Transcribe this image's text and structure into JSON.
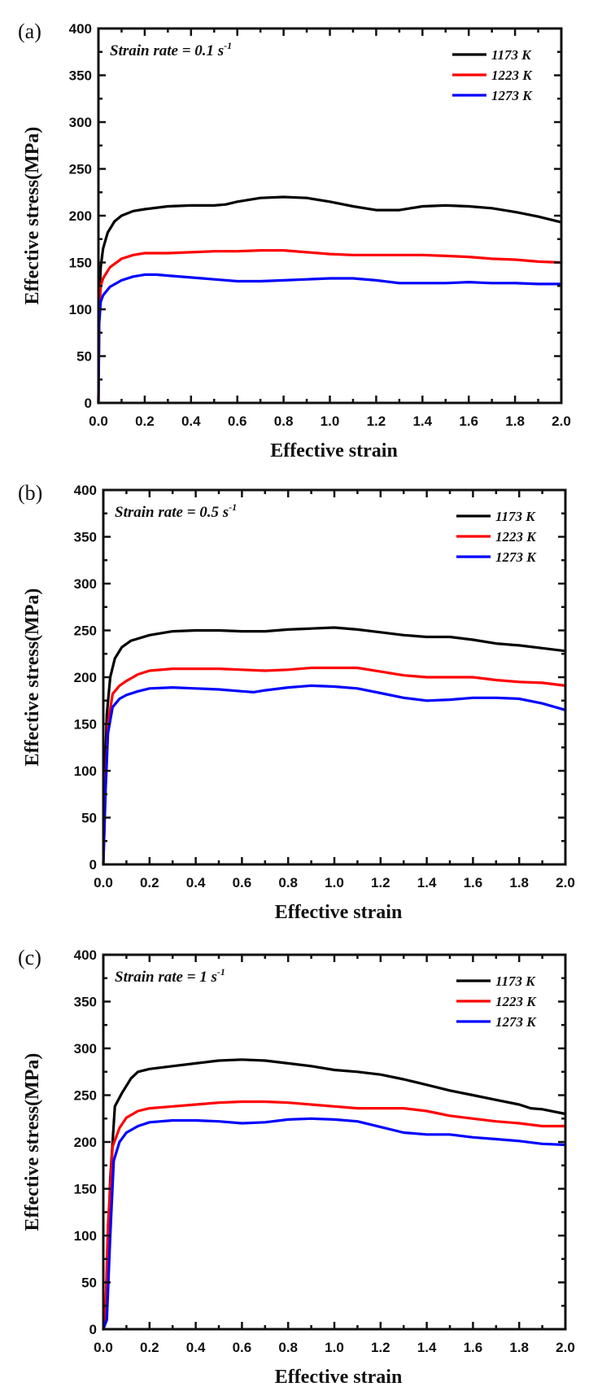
{
  "chart_data": [
    {
      "type": "line",
      "panel_label": "(a)",
      "annotation": {
        "text": "Strain rate = 0.1 s",
        "superscript": "-1"
      },
      "xlabel": "Effective strain",
      "ylabel": "Effective stress(MPa)",
      "xlim": [
        0,
        2.0
      ],
      "ylim": [
        0,
        400
      ],
      "xticks": [
        "0.0",
        "0.2",
        "0.4",
        "0.6",
        "0.8",
        "1.0",
        "1.2",
        "1.4",
        "1.6",
        "1.8",
        "2.0"
      ],
      "yticks": [
        "0",
        "50",
        "100",
        "150",
        "200",
        "250",
        "300",
        "350",
        "400"
      ],
      "legend_position": "top-right",
      "series": [
        {
          "name": "1173 K",
          "color": "#000000",
          "x": [
            0,
            0.003,
            0.01,
            0.02,
            0.04,
            0.07,
            0.1,
            0.15,
            0.2,
            0.3,
            0.4,
            0.5,
            0.55,
            0.6,
            0.7,
            0.8,
            0.9,
            1.0,
            1.1,
            1.2,
            1.3,
            1.4,
            1.5,
            1.6,
            1.7,
            1.8,
            1.9,
            2.0
          ],
          "y": [
            0,
            110,
            145,
            165,
            182,
            194,
            200,
            205,
            207,
            210,
            211,
            211,
            212,
            215,
            219,
            220,
            219,
            215,
            210,
            206,
            206,
            210,
            211,
            210,
            208,
            204,
            199,
            193
          ]
        },
        {
          "name": "1223 K",
          "color": "#ff0000",
          "x": [
            0,
            0.003,
            0.01,
            0.02,
            0.05,
            0.1,
            0.15,
            0.2,
            0.3,
            0.4,
            0.5,
            0.6,
            0.7,
            0.8,
            0.9,
            1.0,
            1.1,
            1.2,
            1.3,
            1.4,
            1.5,
            1.6,
            1.7,
            1.8,
            1.9,
            2.0
          ],
          "y": [
            0,
            95,
            125,
            133,
            145,
            154,
            158,
            160,
            160,
            161,
            162,
            162,
            163,
            163,
            161,
            159,
            158,
            158,
            158,
            158,
            157,
            156,
            154,
            153,
            151,
            150
          ]
        },
        {
          "name": "1273 K",
          "color": "#0000ff",
          "x": [
            0,
            0.003,
            0.01,
            0.02,
            0.05,
            0.1,
            0.15,
            0.2,
            0.25,
            0.3,
            0.4,
            0.5,
            0.6,
            0.7,
            0.8,
            0.9,
            1.0,
            1.1,
            1.2,
            1.3,
            1.4,
            1.5,
            1.6,
            1.7,
            1.8,
            1.9,
            2.0
          ],
          "y": [
            0,
            85,
            108,
            115,
            124,
            131,
            135,
            137,
            137,
            136,
            134,
            132,
            130,
            130,
            131,
            132,
            133,
            133,
            131,
            128,
            128,
            128,
            129,
            128,
            128,
            127,
            127
          ]
        }
      ]
    },
    {
      "type": "line",
      "panel_label": "(b)",
      "annotation": {
        "text": "Strain rate = 0.5 s",
        "superscript": "-1"
      },
      "xlabel": "Effective strain",
      "ylabel": "Effective stress(MPa)",
      "xlim": [
        0,
        2.0
      ],
      "ylim": [
        0,
        400
      ],
      "xticks": [
        "0.0",
        "0.2",
        "0.4",
        "0.6",
        "0.8",
        "1.0",
        "1.2",
        "1.4",
        "1.6",
        "1.8",
        "2.0"
      ],
      "yticks": [
        "0",
        "50",
        "100",
        "150",
        "200",
        "250",
        "300",
        "350",
        "400"
      ],
      "legend_position": "top-right",
      "series": [
        {
          "name": "1173 K",
          "color": "#000000",
          "x": [
            0,
            0.008,
            0.015,
            0.03,
            0.05,
            0.08,
            0.12,
            0.2,
            0.3,
            0.4,
            0.5,
            0.6,
            0.7,
            0.8,
            0.9,
            1.0,
            1.1,
            1.2,
            1.3,
            1.4,
            1.5,
            1.6,
            1.7,
            1.8,
            1.9,
            2.0
          ],
          "y": [
            0,
            100,
            160,
            200,
            220,
            232,
            239,
            245,
            249,
            250,
            250,
            249,
            249,
            251,
            252,
            253,
            251,
            248,
            245,
            243,
            243,
            240,
            236,
            234,
            231,
            228
          ]
        },
        {
          "name": "1223 K",
          "color": "#ff0000",
          "x": [
            0,
            0.01,
            0.02,
            0.04,
            0.07,
            0.1,
            0.15,
            0.2,
            0.3,
            0.4,
            0.5,
            0.6,
            0.7,
            0.8,
            0.9,
            1.0,
            1.1,
            1.2,
            1.3,
            1.4,
            1.5,
            1.6,
            1.7,
            1.8,
            1.9,
            2.0
          ],
          "y": [
            0,
            90,
            150,
            182,
            191,
            196,
            203,
            207,
            209,
            209,
            209,
            208,
            207,
            208,
            210,
            210,
            210,
            206,
            202,
            200,
            200,
            200,
            197,
            195,
            194,
            191
          ]
        },
        {
          "name": "1273 K",
          "color": "#0000ff",
          "x": [
            0,
            0.01,
            0.02,
            0.04,
            0.07,
            0.1,
            0.15,
            0.2,
            0.3,
            0.4,
            0.5,
            0.6,
            0.65,
            0.7,
            0.8,
            0.9,
            1.0,
            1.1,
            1.2,
            1.3,
            1.4,
            1.5,
            1.6,
            1.7,
            1.8,
            1.9,
            2.0
          ],
          "y": [
            0,
            80,
            140,
            168,
            177,
            181,
            185,
            188,
            189,
            188,
            187,
            185,
            184,
            186,
            189,
            191,
            190,
            188,
            183,
            178,
            175,
            176,
            178,
            178,
            177,
            172,
            165
          ]
        }
      ]
    },
    {
      "type": "line",
      "panel_label": "(c)",
      "annotation": {
        "text": "Strain rate = 1 s",
        "superscript": "-1"
      },
      "xlabel": "Effective strain",
      "ylabel": "Effective stress(MPa)",
      "xlim": [
        0,
        2.0
      ],
      "ylim": [
        0,
        400
      ],
      "xticks": [
        "0.0",
        "0.2",
        "0.4",
        "0.6",
        "0.8",
        "1.0",
        "1.2",
        "1.4",
        "1.6",
        "1.8",
        "2.0"
      ],
      "yticks": [
        "0",
        "50",
        "100",
        "150",
        "200",
        "250",
        "300",
        "350",
        "400"
      ],
      "legend_position": "top-right",
      "series": [
        {
          "name": "1173 K",
          "color": "#000000",
          "x": [
            0,
            0.01,
            0.03,
            0.05,
            0.08,
            0.12,
            0.15,
            0.2,
            0.3,
            0.4,
            0.5,
            0.6,
            0.7,
            0.8,
            0.9,
            1.0,
            1.1,
            1.2,
            1.3,
            1.4,
            1.5,
            1.6,
            1.7,
            1.8,
            1.85,
            1.9,
            2.0
          ],
          "y": [
            0,
            10,
            160,
            238,
            252,
            268,
            275,
            278,
            281,
            284,
            287,
            288,
            287,
            284,
            281,
            277,
            275,
            272,
            267,
            261,
            255,
            250,
            245,
            240,
            236,
            235,
            230
          ]
        },
        {
          "name": "1223 K",
          "color": "#ff0000",
          "x": [
            0,
            0.01,
            0.02,
            0.04,
            0.07,
            0.1,
            0.15,
            0.2,
            0.3,
            0.4,
            0.5,
            0.6,
            0.7,
            0.8,
            0.9,
            1.0,
            1.1,
            1.2,
            1.3,
            1.4,
            1.5,
            1.6,
            1.7,
            1.8,
            1.9,
            2.0
          ],
          "y": [
            0,
            20,
            110,
            195,
            215,
            226,
            233,
            236,
            238,
            240,
            242,
            243,
            243,
            242,
            240,
            238,
            236,
            236,
            236,
            233,
            228,
            225,
            222,
            220,
            217,
            217
          ]
        },
        {
          "name": "1273 K",
          "color": "#0000ff",
          "x": [
            0,
            0.015,
            0.03,
            0.045,
            0.07,
            0.1,
            0.15,
            0.2,
            0.3,
            0.4,
            0.5,
            0.6,
            0.7,
            0.8,
            0.9,
            1.0,
            1.1,
            1.2,
            1.3,
            1.4,
            1.5,
            1.6,
            1.7,
            1.8,
            1.9,
            2.0
          ],
          "y": [
            0,
            10,
            100,
            180,
            200,
            210,
            217,
            221,
            223,
            223,
            222,
            220,
            221,
            224,
            225,
            224,
            222,
            216,
            210,
            208,
            208,
            205,
            203,
            201,
            198,
            197
          ]
        }
      ]
    }
  ]
}
